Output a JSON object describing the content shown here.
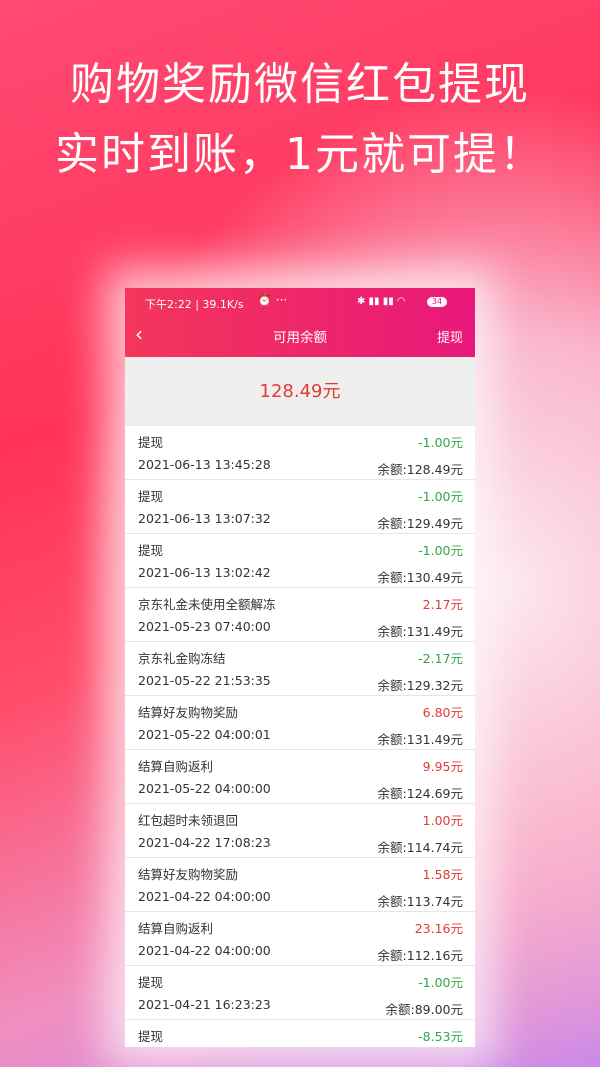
{
  "headline": {
    "line1": "购物奖励微信红包提现",
    "line2": "实时到账，1元就可提！"
  },
  "status_bar": {
    "left": "下午2:22 | 39.1K/s",
    "battery": "34"
  },
  "nav": {
    "title": "可用余额",
    "action": "提现"
  },
  "balance": "128.49元",
  "records": [
    {
      "title": "提现",
      "amount": "-1.00元",
      "date": "2021-06-13 13:45:28",
      "balance": "余额:128.49元"
    },
    {
      "title": "提现",
      "amount": "-1.00元",
      "date": "2021-06-13 13:07:32",
      "balance": "余额:129.49元"
    },
    {
      "title": "提现",
      "amount": "-1.00元",
      "date": "2021-06-13 13:02:42",
      "balance": "余额:130.49元"
    },
    {
      "title": "京东礼金未使用全额解冻",
      "amount": "2.17元",
      "date": "2021-05-23 07:40:00",
      "balance": "余额:131.49元"
    },
    {
      "title": "京东礼金购冻结",
      "amount": "-2.17元",
      "date": "2021-05-22 21:53:35",
      "balance": "余额:129.32元"
    },
    {
      "title": "结算好友购物奖励",
      "amount": "6.80元",
      "date": "2021-05-22 04:00:01",
      "balance": "余额:131.49元"
    },
    {
      "title": "结算自购返利",
      "amount": "9.95元",
      "date": "2021-05-22 04:00:00",
      "balance": "余额:124.69元"
    },
    {
      "title": "红包超时未领退回",
      "amount": "1.00元",
      "date": "2021-04-22 17:08:23",
      "balance": "余额:114.74元"
    },
    {
      "title": "结算好友购物奖励",
      "amount": "1.58元",
      "date": "2021-04-22 04:00:00",
      "balance": "余额:113.74元"
    },
    {
      "title": "结算自购返利",
      "amount": "23.16元",
      "date": "2021-04-22 04:00:00",
      "balance": "余额:112.16元"
    },
    {
      "title": "提现",
      "amount": "-1.00元",
      "date": "2021-04-21 16:23:23",
      "balance": "余额:89.00元"
    },
    {
      "title": "提现",
      "amount": "-8.53元"
    }
  ]
}
